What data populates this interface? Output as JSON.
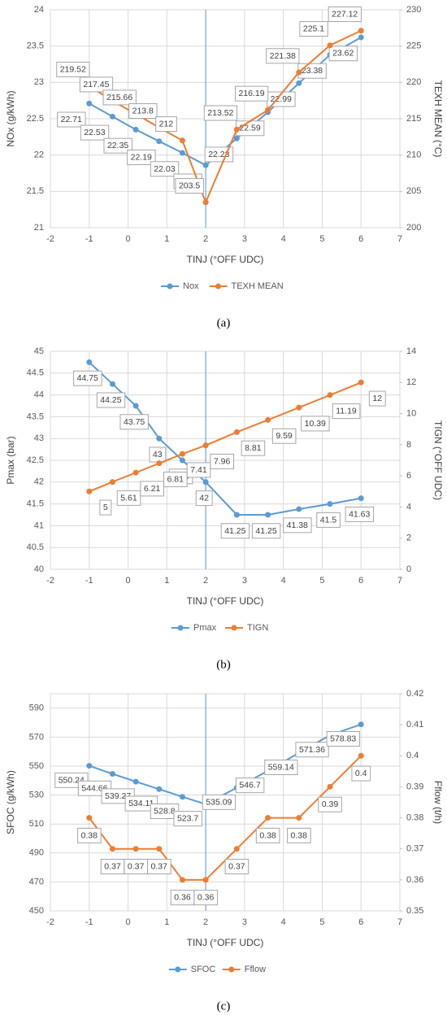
{
  "chart_data": [
    {
      "type": "line",
      "caption": "(a)",
      "x_label": "TINJ (°OFF UDC)",
      "y_label": "NOx (g/kWh)",
      "y2_label": "TEXH MEAN (°C)",
      "x": [
        -1,
        -0.4,
        0.2,
        0.8,
        1.4,
        2,
        2.8,
        3.6,
        4.4,
        5.2,
        6
      ],
      "series": [
        {
          "name": "Nox",
          "color": "#5b9bd5",
          "values": [
            22.71,
            22.53,
            22.35,
            22.19,
            22.03,
            21.86,
            22.23,
            22.59,
            22.99,
            23.38,
            23.62
          ]
        },
        {
          "name": "TEXH MEAN",
          "color": "#ed7d31",
          "axis": "y2",
          "values": [
            219.52,
            217.45,
            215.66,
            213.8,
            212,
            203.5,
            213.52,
            216.19,
            221.38,
            225.1,
            227.12
          ]
        }
      ],
      "xlim": [
        -2,
        7
      ],
      "xticks": [
        -2,
        -1,
        0,
        1,
        2,
        3,
        4,
        5,
        6,
        7
      ],
      "ylim": [
        21,
        24
      ],
      "yticks": [
        21,
        21.5,
        22,
        22.5,
        23,
        23.5,
        24
      ],
      "y2lim": [
        200,
        230
      ],
      "y2ticks": [
        200,
        205,
        210,
        215,
        220,
        225,
        230
      ],
      "vline": 2,
      "vline_color": "#5b9bd5",
      "grid": true,
      "legend": "bottom"
    },
    {
      "type": "line",
      "caption": "(b)",
      "x_label": "TINJ (°OFF UDC)",
      "y_label": "Pmax (bar)",
      "y2_label": "TIGN (°OFF UDC)",
      "x": [
        -1,
        -0.4,
        0.2,
        0.8,
        1.4,
        2,
        2.8,
        3.6,
        4.4,
        5.2,
        6
      ],
      "series": [
        {
          "name": "Pmax",
          "color": "#5b9bd5",
          "values": [
            44.75,
            44.25,
            43.75,
            43,
            42.5,
            42,
            41.25,
            41.25,
            41.38,
            41.5,
            41.63
          ]
        },
        {
          "name": "TIGN",
          "color": "#ed7d31",
          "axis": "y2",
          "values": [
            5,
            5.61,
            6.21,
            6.81,
            7.41,
            7.96,
            8.81,
            9.59,
            10.39,
            11.19,
            12
          ]
        }
      ],
      "xlim": [
        -2,
        7
      ],
      "xticks": [
        -2,
        -1,
        0,
        1,
        2,
        3,
        4,
        5,
        6,
        7
      ],
      "ylim": [
        40,
        45
      ],
      "yticks": [
        40,
        40.5,
        41,
        41.5,
        42,
        42.5,
        43,
        43.5,
        44,
        44.5,
        45
      ],
      "y2lim": [
        0,
        14
      ],
      "y2ticks": [
        0,
        2,
        4,
        6,
        8,
        10,
        12,
        14
      ],
      "vline": 2,
      "vline_color": "#5b9bd5",
      "grid": true,
      "legend": "bottom"
    },
    {
      "type": "line",
      "caption": "(c)",
      "x_label": "TINJ (°OFF UDC)",
      "y_label": "SFOC (g/kWh)",
      "y2_label": "Fflow (t/h)",
      "x": [
        -1,
        -0.4,
        0.2,
        0.8,
        1.4,
        2,
        2.8,
        3.6,
        4.4,
        5.2,
        6
      ],
      "series": [
        {
          "name": "SFOC",
          "color": "#5b9bd5",
          "values": [
            550.24,
            544.66,
            539.27,
            534.11,
            528.8,
            523.7,
            535.09,
            546.7,
            559.14,
            571.36,
            578.83
          ]
        },
        {
          "name": "Fflow",
          "color": "#ed7d31",
          "axis": "y2",
          "values": [
            0.38,
            0.37,
            0.37,
            0.37,
            0.36,
            0.36,
            0.37,
            0.38,
            0.38,
            0.39,
            0.4
          ]
        }
      ],
      "xlim": [
        -2,
        7
      ],
      "xticks": [
        -2,
        -1,
        0,
        1,
        2,
        3,
        4,
        5,
        6,
        7
      ],
      "ylim": [
        450,
        600
      ],
      "yticks": [
        450,
        470,
        490,
        510,
        530,
        550,
        570,
        590
      ],
      "y2lim": [
        0.35,
        0.42
      ],
      "y2ticks": [
        0.35,
        0.36,
        0.37,
        0.38,
        0.39,
        0.4,
        0.41,
        0.42
      ],
      "vline": 2,
      "vline_color": "#5b9bd5",
      "grid": true,
      "legend": "bottom"
    }
  ]
}
